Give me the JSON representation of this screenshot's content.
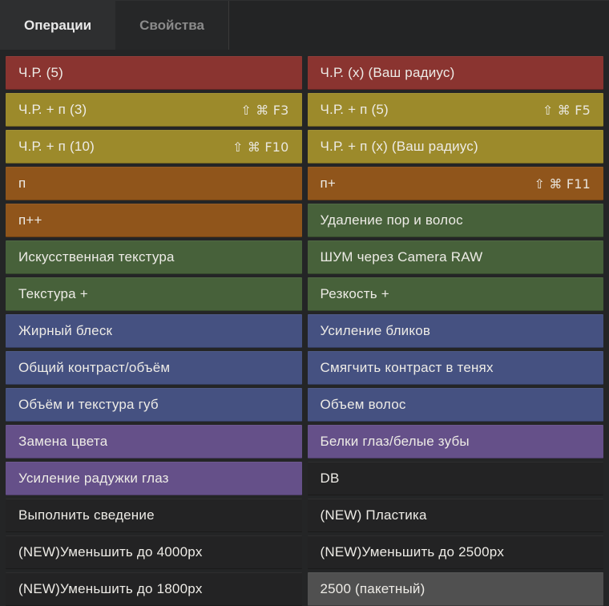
{
  "panel": {
    "tabs": {
      "operations": {
        "label": "Операции",
        "active": true
      },
      "properties": {
        "label": "Свойства",
        "active": false
      }
    }
  },
  "palette": {
    "red": "#8A3430",
    "olive": "#9C8A2B",
    "orange": "#90551B",
    "green": "#47613A",
    "blue": "#455181",
    "purple": "#655089",
    "dark": "#232324",
    "gray": "#505050",
    "page_background": "#242526",
    "text": "#EDEBE6"
  },
  "shortcut_icons": {
    "shift": "⇧",
    "command": "⌘"
  },
  "rows": [
    {
      "left": {
        "label": "Ч.Р. (5)",
        "color": "red"
      },
      "right": {
        "label": "Ч.Р. (x) (Ваш радиус)",
        "color": "red"
      }
    },
    {
      "left": {
        "label": "Ч.Р. + п (3)",
        "color": "olive",
        "shortcut": "⇧ ⌘ F3"
      },
      "right": {
        "label": "Ч.Р. + п (5)",
        "color": "olive",
        "shortcut": "⇧ ⌘ F5"
      }
    },
    {
      "left": {
        "label": "Ч.Р. + п (10)",
        "color": "olive",
        "shortcut": "⇧ ⌘ F10"
      },
      "right": {
        "label": "Ч.Р. + п (x) (Ваш радиус)",
        "color": "olive"
      }
    },
    {
      "left": {
        "label": "п",
        "color": "orange"
      },
      "right": {
        "label": "п+",
        "color": "orange",
        "shortcut": "⇧ ⌘ F11"
      }
    },
    {
      "left": {
        "label": "п++",
        "color": "orange"
      },
      "right": {
        "label": "Удаление пор и волос",
        "color": "green"
      }
    },
    {
      "left": {
        "label": "Искусственная текстура",
        "color": "green"
      },
      "right": {
        "label": "ШУМ через Camera RAW",
        "color": "green"
      }
    },
    {
      "left": {
        "label": "Текстура +",
        "color": "green"
      },
      "right": {
        "label": "Резкость +",
        "color": "green"
      }
    },
    {
      "left": {
        "label": "Жирный блеск",
        "color": "blue"
      },
      "right": {
        "label": "Усиление бликов",
        "color": "blue"
      }
    },
    {
      "left": {
        "label": "Общий контраст/объём",
        "color": "blue"
      },
      "right": {
        "label": "Смягчить контраст в тенях",
        "color": "blue"
      }
    },
    {
      "left": {
        "label": "Объём и текстура губ",
        "color": "blue"
      },
      "right": {
        "label": "Объем волос",
        "color": "blue"
      }
    },
    {
      "left": {
        "label": "Замена цвета",
        "color": "purple"
      },
      "right": {
        "label": "Белки глаз/белые зубы",
        "color": "purple"
      }
    },
    {
      "left": {
        "label": "Усиление радужки глаз",
        "color": "purple"
      },
      "right": {
        "label": "DB",
        "color": "dark"
      }
    },
    {
      "left": {
        "label": "Выполнить сведение",
        "color": "dark"
      },
      "right": {
        "label": "(NEW) Пластика",
        "color": "dark"
      }
    },
    {
      "left": {
        "label": "(NEW)Уменьшить до 4000px",
        "color": "dark"
      },
      "right": {
        "label": "(NEW)Уменьшить до 2500px",
        "color": "dark"
      }
    },
    {
      "left": {
        "label": "(NEW)Уменьшить до 1800px",
        "color": "dark"
      },
      "right": {
        "label": "2500 (пакетный)",
        "color": "gray"
      }
    }
  ]
}
